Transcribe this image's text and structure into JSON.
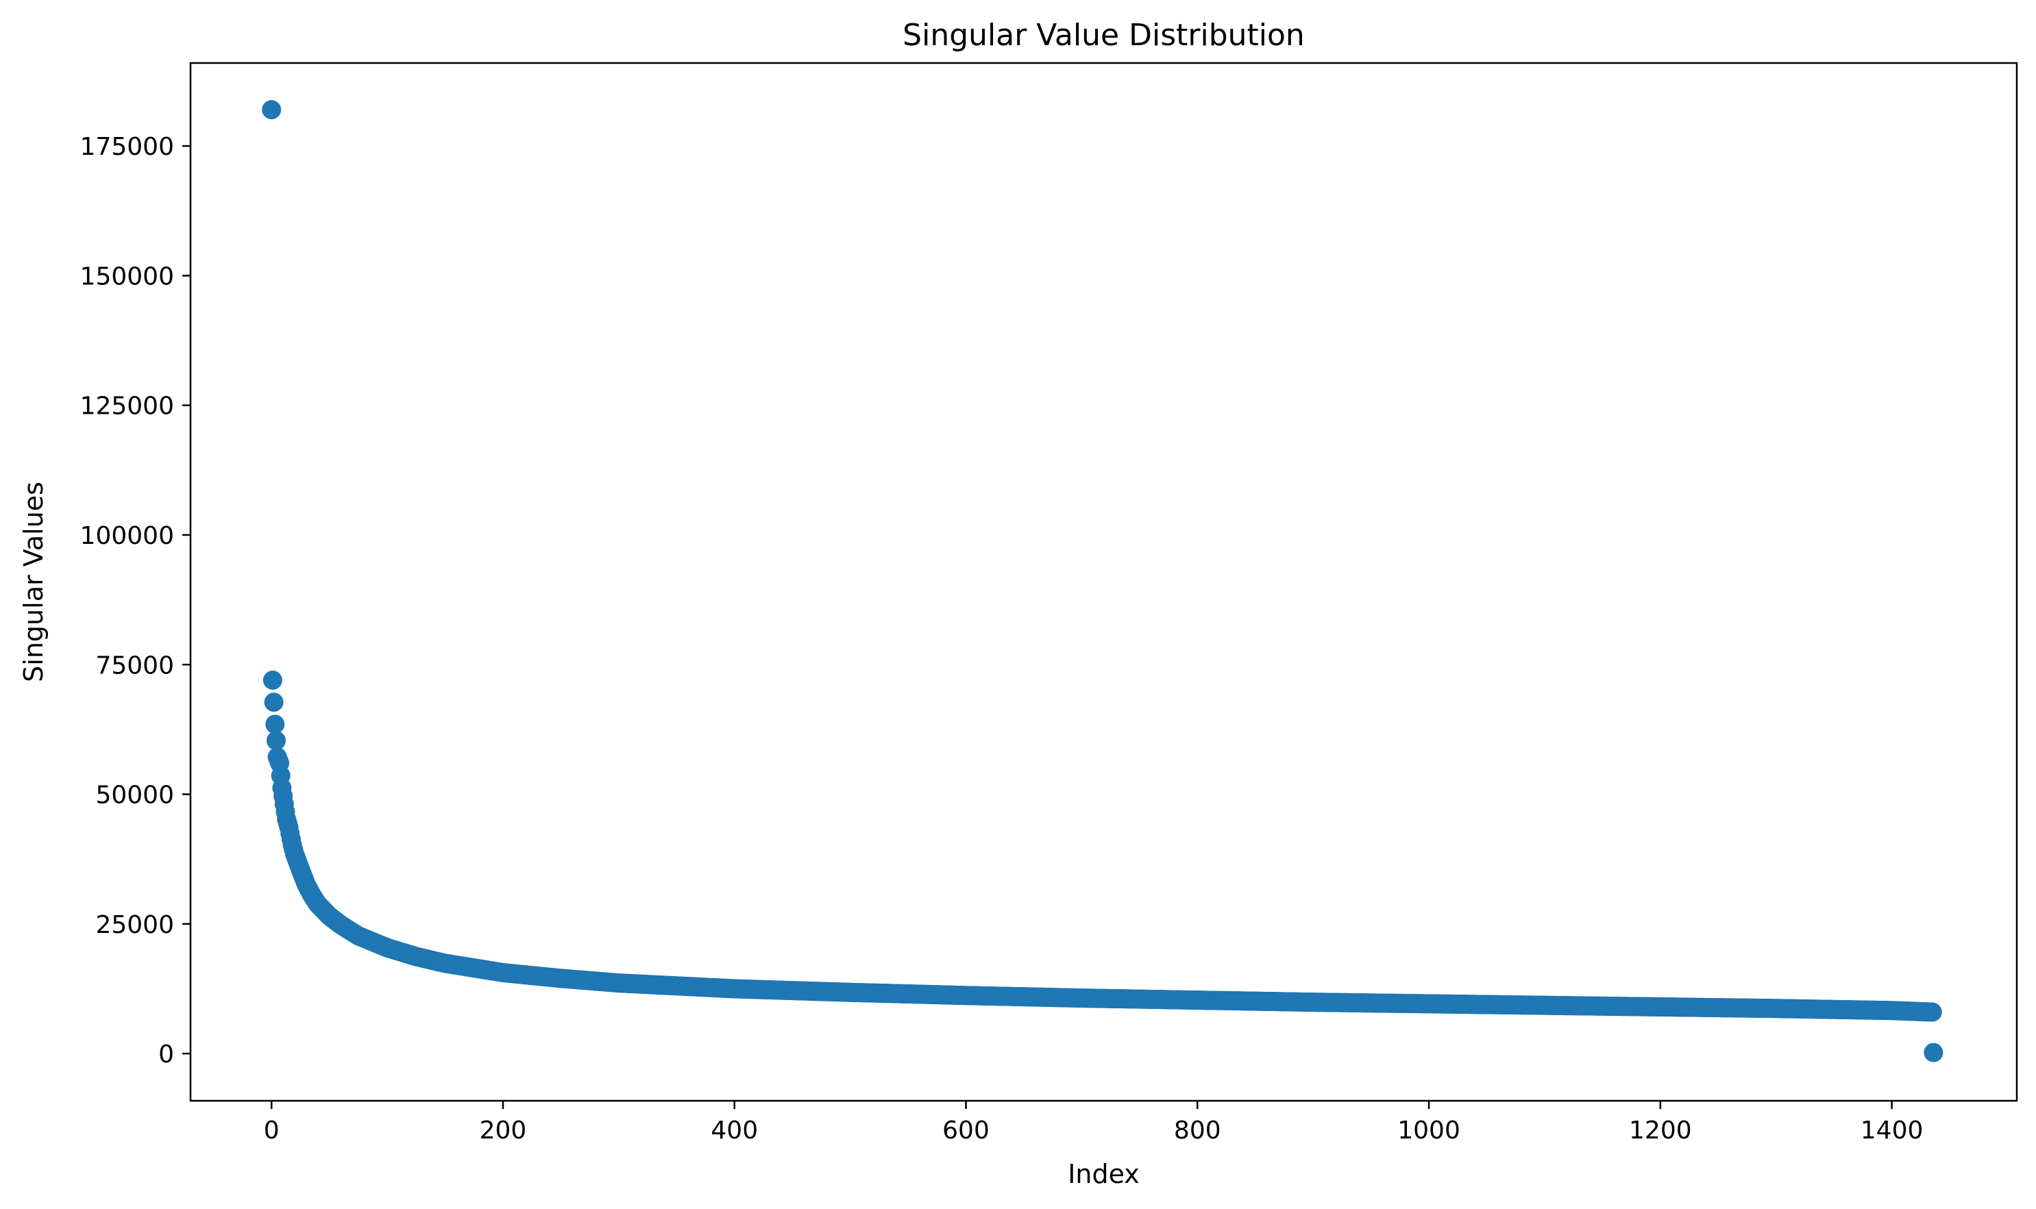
{
  "chart_data": {
    "type": "scatter",
    "title": "Singular Value Distribution",
    "xlabel": "Index",
    "ylabel": "Singular Values",
    "xlim": [
      -70,
      1508
    ],
    "ylim": [
      -9100,
      191000
    ],
    "xticks": [
      0,
      200,
      400,
      600,
      800,
      1000,
      1200,
      1400
    ],
    "yticks": [
      0,
      25000,
      50000,
      75000,
      100000,
      125000,
      150000,
      175000
    ],
    "grid": false,
    "marker_color": "#1f77b4",
    "n_points": 1437,
    "series": [
      {
        "anchors": [
          [
            0,
            182000
          ],
          [
            1,
            72000
          ],
          [
            3,
            63500
          ],
          [
            5,
            57200
          ],
          [
            7,
            56000
          ],
          [
            9,
            51200
          ],
          [
            11,
            48100
          ],
          [
            13,
            45200
          ],
          [
            15,
            43600
          ],
          [
            18,
            40200
          ],
          [
            20,
            38500
          ],
          [
            25,
            35500
          ],
          [
            30,
            32600
          ],
          [
            35,
            30500
          ],
          [
            40,
            28800
          ],
          [
            50,
            26500
          ],
          [
            60,
            24800
          ],
          [
            75,
            22700
          ],
          [
            100,
            20400
          ],
          [
            125,
            18700
          ],
          [
            150,
            17400
          ],
          [
            200,
            15600
          ],
          [
            250,
            14500
          ],
          [
            300,
            13600
          ],
          [
            400,
            12500
          ],
          [
            500,
            11800
          ],
          [
            600,
            11200
          ],
          [
            700,
            10700
          ],
          [
            800,
            10300
          ],
          [
            900,
            9900
          ],
          [
            1000,
            9600
          ],
          [
            1100,
            9300
          ],
          [
            1200,
            9000
          ],
          [
            1300,
            8700
          ],
          [
            1400,
            8300
          ],
          [
            1435,
            8000
          ],
          [
            1436,
            200
          ]
        ]
      }
    ]
  }
}
